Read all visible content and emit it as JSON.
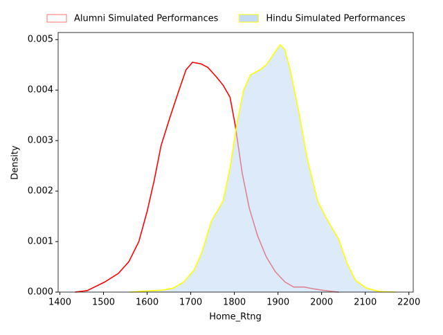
{
  "chart_data": {
    "type": "kde",
    "xlabel": "Home_Rtng",
    "ylabel": "Density",
    "xlim": [
      1396,
      2210
    ],
    "ylim": [
      0,
      0.00514
    ],
    "xticks": [
      1400,
      1500,
      1600,
      1700,
      1800,
      1900,
      2000,
      2100,
      2200
    ],
    "yticks": [
      {
        "value": 0,
        "label": "0.000"
      },
      {
        "value": 0.001,
        "label": "0.001"
      },
      {
        "value": 0.002,
        "label": "0.002"
      },
      {
        "value": 0.003,
        "label": "0.003"
      },
      {
        "value": 0.004,
        "label": "0.004"
      },
      {
        "value": 0.005,
        "label": "0.005"
      }
    ],
    "legend": "top",
    "series": [
      {
        "name": "Alumni Simulated Performances",
        "color": "#ff0000",
        "fill": "none",
        "x": [
          1435,
          1463,
          1503,
          1534,
          1558,
          1581,
          1600,
          1616,
          1632,
          1652,
          1673,
          1689,
          1704,
          1723,
          1739,
          1758,
          1774,
          1790,
          1802,
          1818,
          1834,
          1853,
          1873,
          1894,
          1916,
          1936,
          1960,
          1984,
          2007,
          2039
        ],
        "values": [
          0,
          3e-05,
          0.0002,
          0.00037,
          0.0006,
          0.001,
          0.0016,
          0.0022,
          0.0029,
          0.00345,
          0.004,
          0.0044,
          0.00455,
          0.00452,
          0.00445,
          0.00427,
          0.0041,
          0.00386,
          0.0033,
          0.00235,
          0.00167,
          0.00112,
          0.0007,
          0.0004,
          0.0002,
          0.0001,
          0.0001,
          6e-05,
          3e-05,
          0
        ]
      },
      {
        "name": "Hindu Simulated Performances",
        "color": "#ffff00",
        "fill": "#c6dcf5",
        "x": [
          1561,
          1597,
          1637,
          1660,
          1684,
          1708,
          1726,
          1747,
          1774,
          1791,
          1805,
          1821,
          1837,
          1858,
          1873,
          1889,
          1905,
          1916,
          1928,
          1947,
          1968,
          1991,
          2015,
          2039,
          2058,
          2078,
          2102,
          2133,
          2169
        ],
        "values": [
          0,
          2e-05,
          4e-05,
          8e-05,
          0.0002,
          0.00044,
          0.0008,
          0.0014,
          0.0018,
          0.0025,
          0.0033,
          0.004,
          0.0043,
          0.0044,
          0.0045,
          0.0047,
          0.0049,
          0.0048,
          0.0044,
          0.0036,
          0.0026,
          0.0018,
          0.0014,
          0.00105,
          0.00058,
          0.00023,
          8e-05,
          1e-05,
          0
        ]
      }
    ]
  }
}
